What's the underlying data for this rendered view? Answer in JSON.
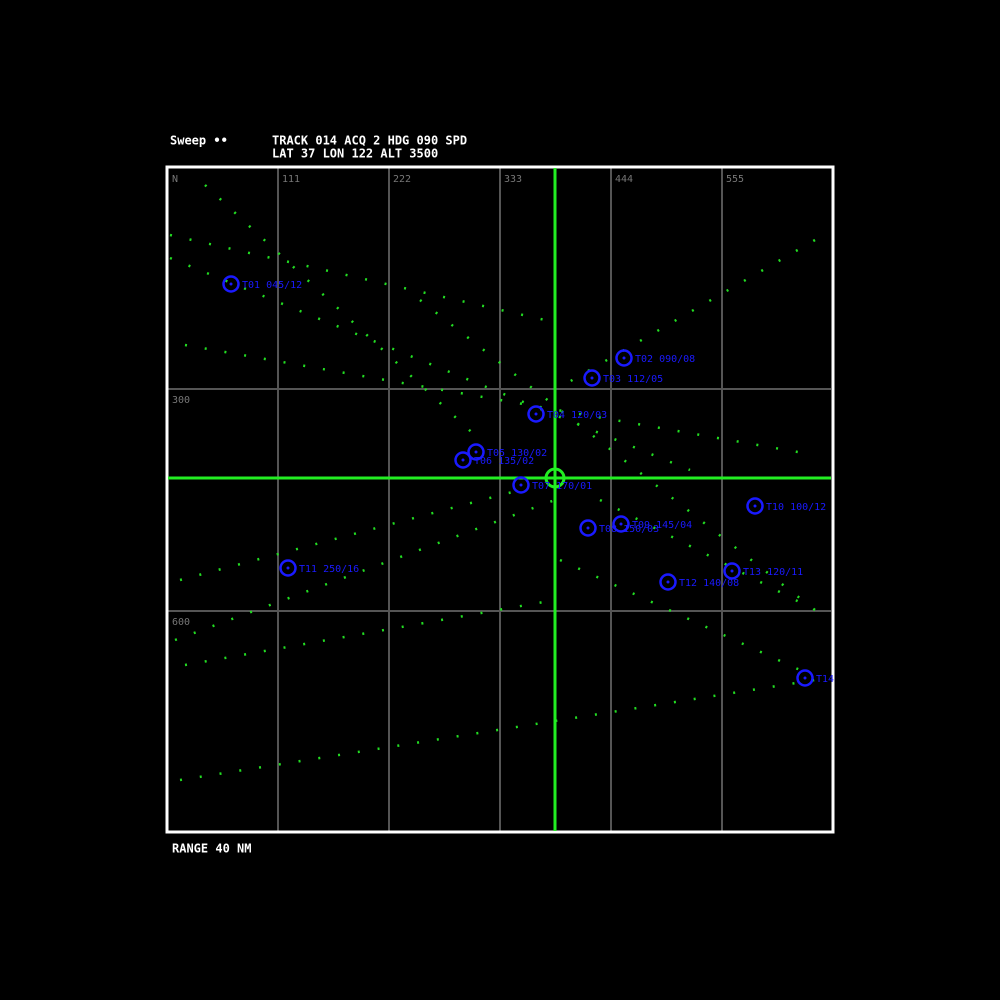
{
  "header": {
    "mode": "Sweep  ••",
    "line1": "TRACK 014 ACQ 2 HDG 090 SPD",
    "line2": "LAT 37 LON 122 ALT 3500"
  },
  "top_ticks": [
    "N",
    "111",
    "222",
    "333",
    "444",
    "555"
  ],
  "side_ticks": [
    "300",
    "600"
  ],
  "footer": "RANGE 40 NM",
  "targets": [
    {
      "label": "T01 045/12"
    },
    {
      "label": "T02 090/08"
    },
    {
      "label": "T03 112/05"
    },
    {
      "label": "T04 120/03"
    },
    {
      "label": "T05 130/02"
    },
    {
      "label": "T06 135/02"
    },
    {
      "label": "T07 170/01"
    },
    {
      "label": "T08 150/03"
    },
    {
      "label": "T09 145/04"
    },
    {
      "label": "T10 100/12"
    },
    {
      "label": "T11 250/16"
    },
    {
      "label": "T12 140/08"
    },
    {
      "label": "T13 120/11"
    },
    {
      "label": "T14"
    }
  ]
}
